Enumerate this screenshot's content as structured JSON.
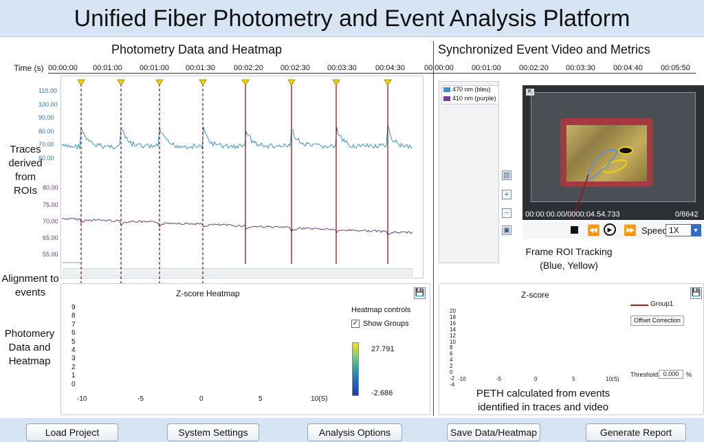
{
  "header": {
    "title": "Unified Fiber Photometry and Event Analysis Platform"
  },
  "left": {
    "section_title": "Photometry Data and Heatmap",
    "time_label": "Time (s)",
    "time_ticks": [
      "00:00:00",
      "00:01:00",
      "00:01:00",
      "00:01:30",
      "00:02:20",
      "00:02:30",
      "00:03:30",
      "00:04:30"
    ],
    "blue_ticks": [
      "110.00",
      "100.00",
      "90.00",
      "80.00",
      "70.00",
      "60.00"
    ],
    "purple_ticks": [
      "80.00",
      "75.00",
      "70.00",
      "65.00",
      "55.00"
    ],
    "annot_traces": "Traces derived from ROIs",
    "annot_alignment": "Alignment to events",
    "annot_photometry": "Photomery Data and Heatmap"
  },
  "heatmap": {
    "title": "Z-score Heatmap",
    "y_ticks": [
      "9",
      "8",
      "7",
      "6",
      "5",
      "4",
      "3",
      "2",
      "1",
      "0"
    ],
    "x_ticks": [
      "-10",
      "-5",
      "0",
      "5",
      "10(S)"
    ],
    "controls_title": "Heatmap controls",
    "show_groups": "Show Groups",
    "cbar_max": "27.791",
    "cbar_min": "-2.686"
  },
  "right": {
    "section_title": "Synchronized Event Video and Metrics",
    "time_ticks": [
      "00:00:00",
      "00:01:00",
      "00:02:20",
      "00:03:30",
      "00:04:40",
      "00:05:50"
    ],
    "legend": [
      {
        "label": "470 nm (bleu)",
        "color": "#3b8fd9"
      },
      {
        "label": "410 nm (purple)",
        "color": "#7a3f98"
      }
    ],
    "video_time": "00:00:00.00/0000:04.54.733",
    "frame_count": "0/8642",
    "speed_label": "Speed",
    "speed_value": "1X",
    "roi_caption": "Frame ROI Tracking (Blue, Yellow)"
  },
  "peth": {
    "title": "Z-score",
    "legend": "Group1",
    "offset_btn": "Offset Correction",
    "threshold_label": "Threshold",
    "threshold_value": "0.000",
    "threshold_unit": "%",
    "y_ticks": [
      "20",
      "18",
      "16",
      "14",
      "12",
      "10",
      "8",
      "6",
      "4",
      "2",
      "0",
      "-2",
      "-4"
    ],
    "x_ticks": [
      "-10",
      "-5",
      "0",
      "5",
      "10(S)"
    ],
    "caption": "PETH calculated from events identified in traces and video"
  },
  "footer": {
    "buttons": [
      "Load Project",
      "System Settings",
      "Analysis Options",
      "Save Data/Heatmap",
      "Generate Report"
    ]
  },
  "colors": {
    "blue_trace": "#3b8fbf",
    "purple_trace": "#6b3a7e",
    "event_line": "#8b1a1a",
    "marker": "#f2d200"
  }
}
